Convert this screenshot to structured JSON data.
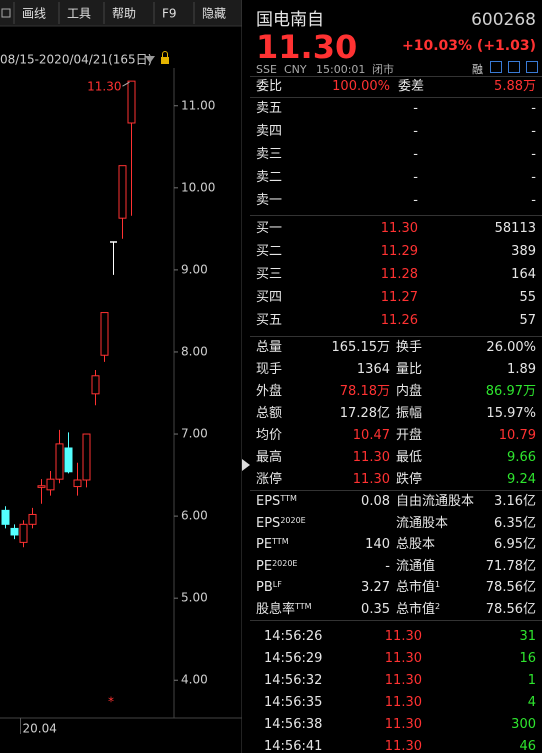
{
  "toolbar": {
    "items": [
      "画线",
      "工具",
      "帮助",
      "F9",
      "隐藏"
    ],
    "range": "08/15-2020/04/21(165日)"
  },
  "chart_data": {
    "type": "candlestick",
    "categories": [
      null,
      null,
      null,
      "20.04",
      null,
      null,
      null,
      null,
      null,
      null,
      null,
      null,
      null,
      null,
      null
    ],
    "open": [
      6.07,
      5.85,
      5.68,
      5.9,
      6.35,
      6.32,
      6.45,
      6.83,
      6.36,
      6.44,
      7.49,
      7.96,
      9.34,
      9.63,
      10.79
    ],
    "high": [
      6.12,
      5.9,
      5.95,
      6.1,
      6.45,
      6.55,
      7.05,
      7.02,
      6.65,
      7.0,
      7.78,
      8.48,
      9.34,
      10.27,
      11.3
    ],
    "low": [
      5.85,
      5.72,
      5.62,
      5.85,
      6.15,
      6.25,
      6.4,
      6.52,
      6.25,
      6.35,
      7.35,
      7.88,
      8.94,
      9.38,
      9.66
    ],
    "close": [
      5.9,
      5.77,
      5.9,
      6.02,
      6.37,
      6.45,
      6.88,
      6.54,
      6.44,
      7.0,
      7.71,
      8.48,
      9.34,
      10.27,
      11.3
    ],
    "high_labels": [
      null,
      null,
      null,
      null,
      null,
      null,
      null,
      null,
      null,
      null,
      null,
      null,
      null,
      null,
      "11.30"
    ],
    "up_color": "#ff3232",
    "down_color": "#54ffff",
    "flat_color": "#ffffff",
    "ylim": [
      3.54,
      11.46
    ],
    "yticks": [
      {
        "value": 4,
        "label": "4.00"
      },
      {
        "value": 5,
        "label": "5.00"
      },
      {
        "value": 6,
        "label": "6.00"
      },
      {
        "value": 7,
        "label": "7.00"
      },
      {
        "value": 8,
        "label": "8.00"
      },
      {
        "value": 9,
        "label": "9.00"
      },
      {
        "value": 10,
        "label": "10.00"
      },
      {
        "value": 11,
        "label": "11.00"
      }
    ],
    "marker": "*"
  },
  "quote": {
    "name": "国电南自",
    "code": "600268",
    "price": "11.30",
    "change": "+10.03% (+1.03)",
    "exchange": "SSE",
    "currency": "CNY",
    "time": "15:00:01",
    "status": "闭市",
    "badge": "融"
  },
  "ratio": {
    "label": "委比",
    "value": "100.00%",
    "label2": "委差",
    "value2": "5.88万"
  },
  "asks": [
    {
      "label": "卖五",
      "price": "-",
      "volume": "-"
    },
    {
      "label": "卖四",
      "price": "-",
      "volume": "-"
    },
    {
      "label": "卖三",
      "price": "-",
      "volume": "-"
    },
    {
      "label": "卖二",
      "price": "-",
      "volume": "-"
    },
    {
      "label": "卖一",
      "price": "-",
      "volume": "-"
    }
  ],
  "bids": [
    {
      "label": "买一",
      "price": "11.30",
      "volume": "58113"
    },
    {
      "label": "买二",
      "price": "11.29",
      "volume": "389"
    },
    {
      "label": "买三",
      "price": "11.28",
      "volume": "164"
    },
    {
      "label": "买四",
      "price": "11.27",
      "volume": "55"
    },
    {
      "label": "买五",
      "price": "11.26",
      "volume": "57"
    }
  ],
  "stats": [
    {
      "label": "总量",
      "value": "165.15万",
      "label2": "换手",
      "value2": "26.00%"
    },
    {
      "label": "现手",
      "value": "1364",
      "label2": "量比",
      "value2": "1.89"
    },
    {
      "label": "外盘",
      "value": "78.18万",
      "tone": "up",
      "label2": "内盘",
      "value2": "86.97万",
      "tone2": "down"
    },
    {
      "label": "总额",
      "value": "17.28亿",
      "label2": "振幅",
      "value2": "15.97%"
    },
    {
      "label": "均价",
      "value": "10.47",
      "tone": "up",
      "label2": "开盘",
      "value2": "10.79",
      "tone2": "up"
    },
    {
      "label": "最高",
      "value": "11.30",
      "tone": "up",
      "label2": "最低",
      "value2": "9.66",
      "tone2": "down"
    },
    {
      "label": "涨停",
      "value": "11.30",
      "tone": "up",
      "label2": "跌停",
      "value2": "9.24",
      "tone2": "down"
    }
  ],
  "fundamentals": [
    {
      "label": "EPS",
      "sup": "TTM",
      "value": "0.08",
      "label2": "自由流通股本",
      "value2": "3.16亿"
    },
    {
      "label": "EPS",
      "sup": "2020E",
      "value": "",
      "label2": "流通股本",
      "value2": "6.35亿"
    },
    {
      "label": "PE",
      "sup": "TTM",
      "value": "140",
      "label2": "总股本",
      "value2": "6.95亿"
    },
    {
      "label": "PE",
      "sup": "2020E",
      "value": "-",
      "label2": "流通值",
      "value2": "71.78亿"
    },
    {
      "label": "PB",
      "sup": "LF",
      "value": "3.27",
      "label2": "总市值",
      "sup2": "1",
      "value2": "78.56亿"
    },
    {
      "label": "股息率",
      "sup": "TTM",
      "value": "0.35",
      "label2": "总市值",
      "sup2": "2",
      "value2": "78.56亿"
    }
  ],
  "trades": [
    {
      "time": "14:56:26",
      "price": "11.30",
      "volume": "31"
    },
    {
      "time": "14:56:29",
      "price": "11.30",
      "volume": "16"
    },
    {
      "time": "14:56:32",
      "price": "11.30",
      "volume": "1"
    },
    {
      "time": "14:56:35",
      "price": "11.30",
      "volume": "4"
    },
    {
      "time": "14:56:38",
      "price": "11.30",
      "volume": "300"
    },
    {
      "time": "14:56:41",
      "price": "11.30",
      "volume": "46"
    }
  ]
}
